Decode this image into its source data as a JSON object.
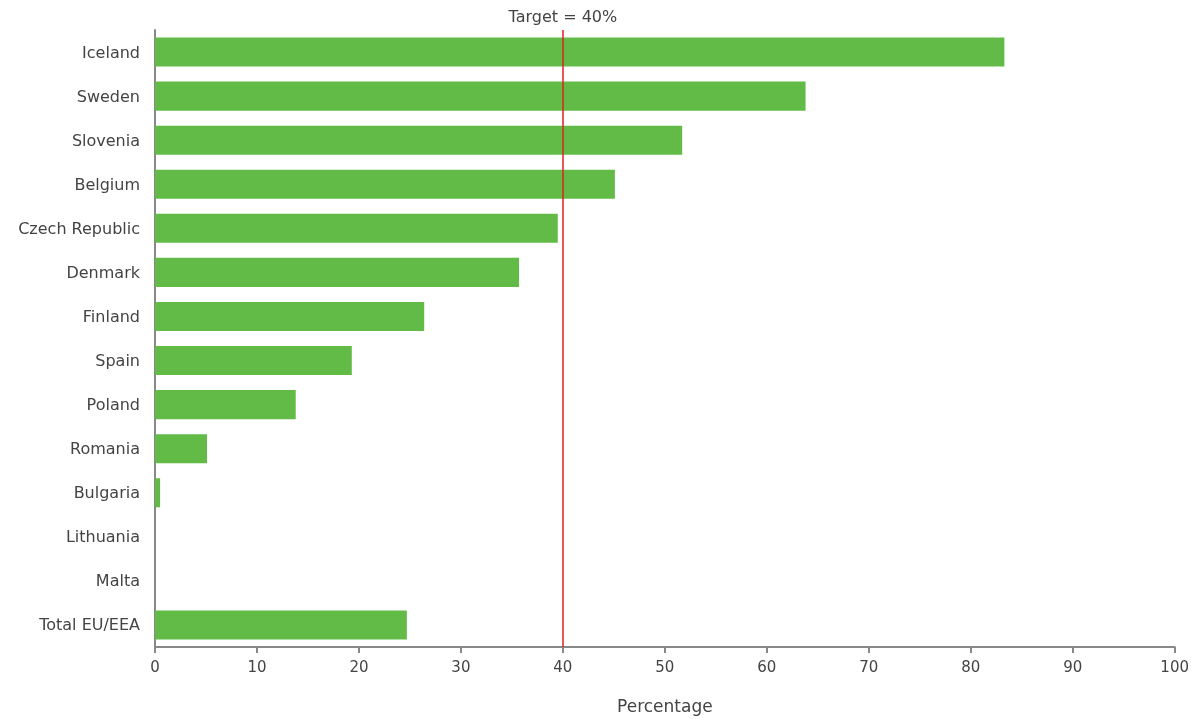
{
  "chart_data": {
    "type": "bar",
    "orientation": "horizontal",
    "xlabel": "Percentage",
    "categories": [
      "Iceland",
      "Sweden",
      "Slovenia",
      "Belgium",
      "Czech Republic",
      "Denmark",
      "Finland",
      "Spain",
      "Poland",
      "Romania",
      "Bulgaria",
      "Lithuania",
      "Malta",
      "Total EU/EEA"
    ],
    "values": [
      83.3,
      63.8,
      51.7,
      45.1,
      39.5,
      35.7,
      26.4,
      19.3,
      13.8,
      5.1,
      0.5,
      0,
      0,
      24.7
    ],
    "color": "#62bb46",
    "xlim": [
      0,
      100
    ],
    "xticks": [
      0,
      10,
      20,
      30,
      40,
      50,
      60,
      70,
      80,
      90,
      100
    ],
    "grid": false,
    "ref_lines": [
      {
        "axis": "x",
        "value": 40,
        "label": "Target = 40%",
        "color": "#e02020"
      }
    ]
  }
}
